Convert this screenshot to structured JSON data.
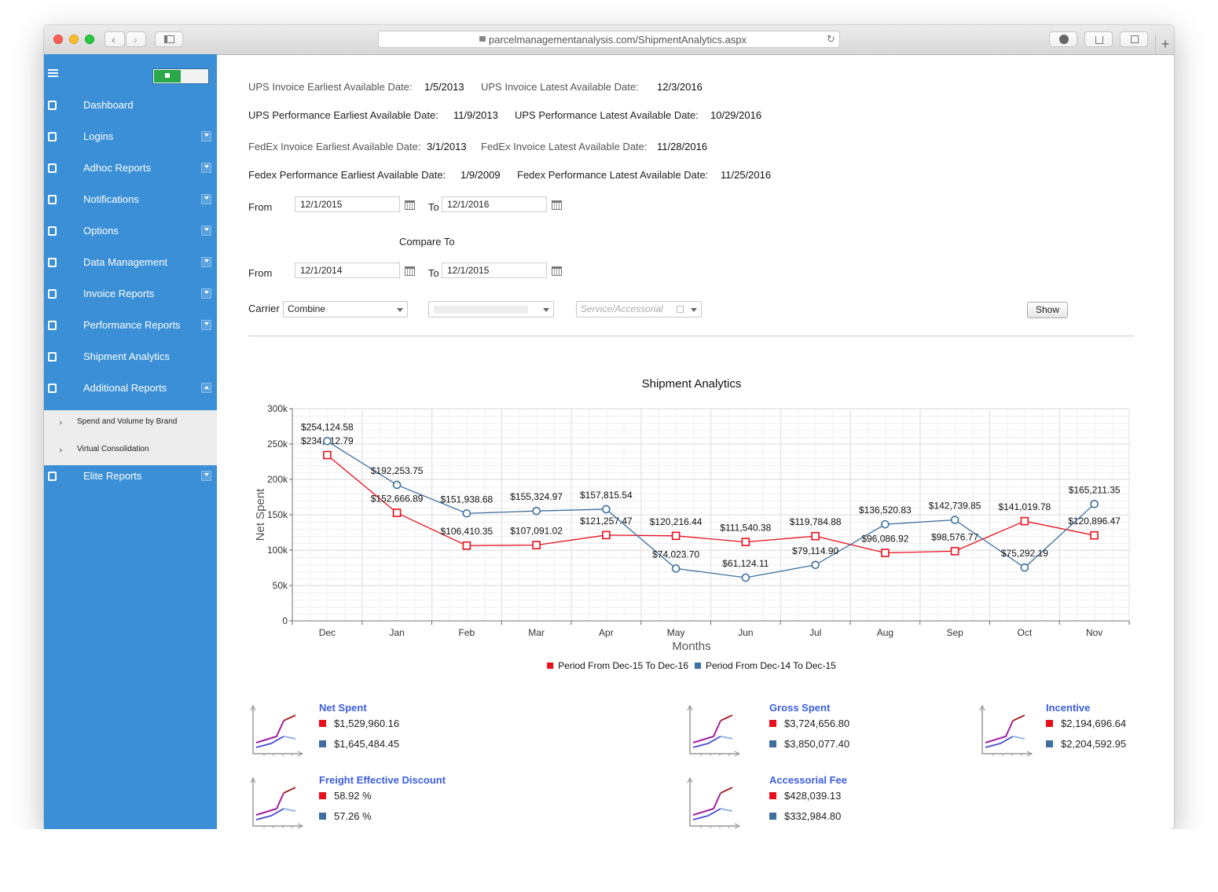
{
  "browser": {
    "url": "parcelmanagementanalysis.com/ShipmentAnalytics.aspx"
  },
  "sidebar": {
    "items": [
      "Dashboard",
      "Logins",
      "Adhoc Reports",
      "Notifications",
      "Options",
      "Data Management",
      "Invoice Reports",
      "Performance Reports",
      "Shipment Analytics",
      "Additional Reports"
    ],
    "subitems": [
      "Spend and Volume by Brand",
      "Virtual Consolidation"
    ],
    "last_item": "Elite Reports"
  },
  "dates": [
    [
      "UPS Invoice Earliest Available Date:",
      "1/5/2013",
      "UPS Invoice Latest Available Date:",
      "12/3/2016"
    ],
    [
      "UPS Performance Earliest Available Date:",
      "11/9/2013",
      "UPS Performance Latest Available Date:",
      "10/29/2016"
    ],
    [
      "FedEx Invoice Earliest Available Date:",
      "3/1/2013",
      "FedEx Invoice Latest Available Date:",
      "11/28/2016"
    ],
    [
      "Fedex Performance Earliest Available Date:",
      "1/9/2009",
      "Fedex Performance Latest Available Date:",
      "11/25/2016"
    ]
  ],
  "form": {
    "from_label": "From",
    "to_label": "To",
    "from1": "12/1/2015",
    "to1": "12/1/2016",
    "compare": "Compare To",
    "from2": "12/1/2014",
    "to2": "12/1/2015",
    "carrier_label": "Carrier",
    "carrier": "Combine",
    "service_placeholder": "Service/Accessorial",
    "show": "Show"
  },
  "chart_data": {
    "type": "line",
    "title": "Shipment Analytics",
    "x_label": "Months",
    "y_label": "Net Spent",
    "categories": [
      "Dec",
      "Jan",
      "Feb",
      "Mar",
      "Apr",
      "May",
      "Jun",
      "Jul",
      "Aug",
      "Sep",
      "Oct",
      "Nov"
    ],
    "series": [
      {
        "name": "Period From Dec-15 To Dec-16",
        "color": "#e8101c",
        "marker": "square",
        "values": [
          234412.79,
          152666.89,
          106410.35,
          107091.02,
          121257.47,
          120216.44,
          111540.38,
          119784.88,
          96086.92,
          98576.77,
          141019.78,
          120896.47
        ],
        "value_labels": [
          "$234,412.79",
          "$152,666.89",
          "$106,410.35",
          "$107,091.02",
          "$121,257.47",
          "$120,216.44",
          "$111,540.38",
          "$119,784.88",
          "$96,086.92",
          "$98,576.77",
          "$141,019.78",
          "$120,896.47"
        ]
      },
      {
        "name": "Period From Dec-14 To Dec-15",
        "color": "#3f6f9f",
        "marker": "circle",
        "values": [
          254124.58,
          192253.75,
          151938.68,
          155324.97,
          157815.54,
          74023.7,
          61124.11,
          79114.9,
          136520.83,
          142739.85,
          75292.19,
          165211.35
        ],
        "value_labels": [
          "$254,124.58",
          "$192,253.75",
          "$151,938.68",
          "$155,324.97",
          "$157,815.54",
          "$74,023.70",
          "$61,124.11",
          "$79,114.90",
          "$136,520.83",
          "$142,739.85",
          "$75,292.19",
          "$165,211.35"
        ]
      }
    ],
    "ylim": [
      0,
      300000
    ],
    "yticks": [
      0,
      {
        "value": 50000,
        "label": "50k"
      },
      {
        "value": 100000,
        "label": "100k"
      },
      {
        "value": 150000,
        "label": "150k"
      },
      {
        "value": 200000,
        "label": "200k"
      },
      {
        "value": 250000,
        "label": "250k"
      },
      {
        "value": 300000,
        "label": "300k"
      }
    ],
    "grid": true,
    "legend": "bottom"
  },
  "summary": [
    {
      "title": "Net Spent",
      "current": "$1,529,960.16",
      "previous": "$1,645,484.45"
    },
    {
      "title": "Gross Spent",
      "current": "$3,724,656.80",
      "previous": "$3,850,077.40"
    },
    {
      "title": "Incentive",
      "current": "$2,194,696.64",
      "previous": "$2,204,592.95"
    },
    {
      "title": "Freight Effective Discount",
      "current": "58.92 %",
      "previous": "57.26 %"
    },
    {
      "title": "Accessorial Fee",
      "current": "$428,039.13",
      "previous": "$332,984.80"
    }
  ]
}
